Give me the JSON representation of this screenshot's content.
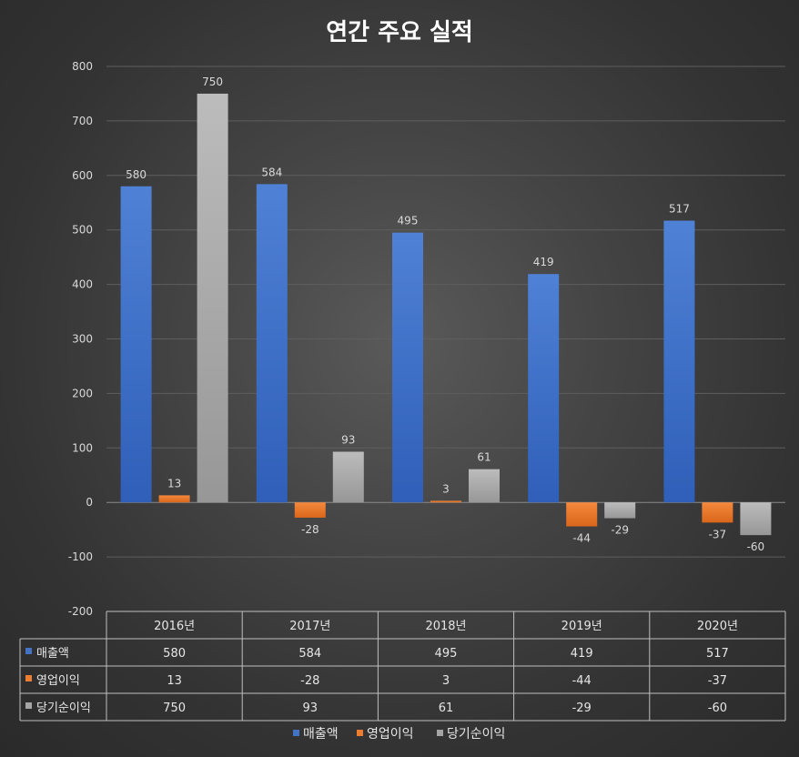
{
  "chart_data": {
    "type": "bar",
    "title": "연간 주요 실적",
    "categories": [
      "2016년",
      "2017년",
      "2018년",
      "2019년",
      "2020년"
    ],
    "series": [
      {
        "name": "매출액",
        "values": [
          580,
          584,
          495,
          419,
          517
        ],
        "color": "#4472c4"
      },
      {
        "name": "영업이익",
        "values": [
          13,
          -28,
          3,
          -44,
          -37
        ],
        "color": "#ed7d31"
      },
      {
        "name": "당기순이익",
        "values": [
          750,
          93,
          61,
          -29,
          -60
        ],
        "color": "#a5a5a5"
      }
    ],
    "ylim": [
      -200,
      800
    ],
    "yticks": [
      800,
      700,
      600,
      500,
      400,
      300,
      200,
      100,
      0,
      -100,
      -200
    ],
    "grid": true,
    "data_table": true,
    "legend_position": "bottom"
  }
}
